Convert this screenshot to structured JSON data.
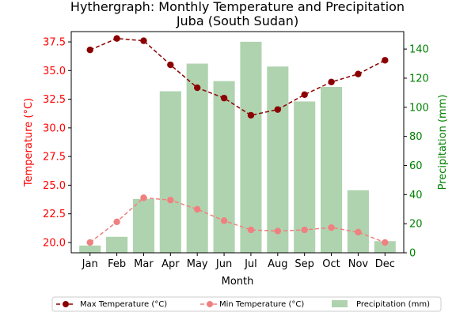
{
  "chart_data": {
    "type": "bar+line",
    "title": "Hythergraph: Monthly Temperature and Precipitation",
    "subtitle": "Juba (South Sudan)",
    "xlabel": "Month",
    "ylabel_left": "Temperature (°C)",
    "ylabel_right": "Precipitation (mm)",
    "categories": [
      "Jan",
      "Feb",
      "Mar",
      "Apr",
      "May",
      "Jun",
      "Jul",
      "Aug",
      "Sep",
      "Oct",
      "Nov",
      "Dec"
    ],
    "ylim_left": [
      19.1,
      38.4
    ],
    "ylim_right": [
      0,
      152
    ],
    "yticks_left": [
      "20.0",
      "22.5",
      "25.0",
      "27.5",
      "30.0",
      "32.5",
      "35.0",
      "37.5"
    ],
    "yticks_right": [
      "0",
      "20",
      "40",
      "60",
      "80",
      "100",
      "120",
      "140"
    ],
    "series": [
      {
        "name": "Max Temperature (°C)",
        "kind": "line",
        "axis": "left",
        "color": "#8b0000",
        "linestyle": "dashed",
        "marker": "circle",
        "values": [
          36.8,
          37.8,
          37.6,
          35.5,
          33.5,
          32.6,
          31.1,
          31.6,
          32.9,
          34.0,
          34.7,
          35.9
        ]
      },
      {
        "name": "Min Temperature (°C)",
        "kind": "line",
        "axis": "left",
        "color": "#f08080",
        "linestyle": "dashed",
        "marker": "circle",
        "values": [
          20.0,
          21.8,
          23.9,
          23.7,
          22.9,
          21.9,
          21.1,
          21.0,
          21.1,
          21.3,
          20.9,
          20.0
        ]
      },
      {
        "name": "Precipitation (mm)",
        "kind": "bar",
        "axis": "right",
        "color": "#2e8b2e",
        "alpha": 0.38,
        "values": [
          5,
          11,
          37,
          111,
          130,
          118,
          145,
          128,
          104,
          114,
          43,
          8
        ]
      }
    ],
    "legend": {
      "placement": "bottom-center"
    },
    "grid": false,
    "colors": {
      "left_axis": "#ff0000",
      "right_axis": "#008000"
    }
  }
}
